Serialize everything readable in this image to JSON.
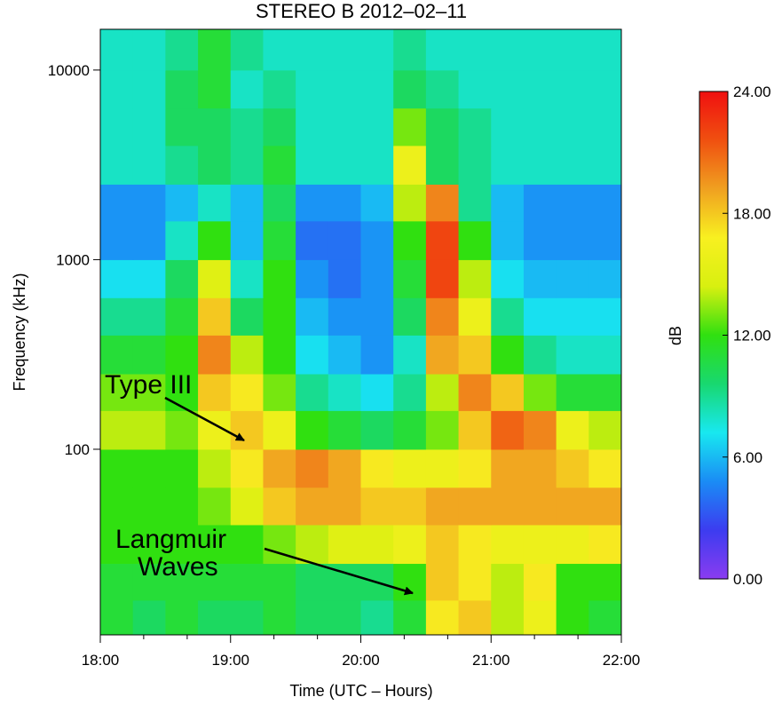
{
  "chart_data": {
    "type": "spectrogram",
    "title": "STEREO B 2012–02–11",
    "x_label": "Time (UTC – Hours)",
    "y_label": "Frequency (kHz)",
    "colorbar_label": "dB",
    "annotations": [
      "Type III",
      "Langmuir",
      "Waves"
    ],
    "xlim": [
      18,
      22
    ],
    "xticks": [
      {
        "value": 18,
        "label": "18:00"
      },
      {
        "value": 19,
        "label": "19:00"
      },
      {
        "value": 20,
        "label": "20:00"
      },
      {
        "value": 21,
        "label": "21:00"
      },
      {
        "value": 22,
        "label": "22:00"
      }
    ],
    "xminorticks": [
      18.333,
      18.667,
      19.333,
      19.667,
      20.333,
      20.667,
      21.333,
      21.667
    ],
    "ylim": [
      10.5,
      16400
    ],
    "yscale": "log",
    "yticks": [
      100,
      1000,
      10000
    ],
    "zlim": [
      0,
      24
    ],
    "zticks": [
      {
        "value": 0,
        "label": "0.00"
      },
      {
        "value": 6,
        "label": "6.00"
      },
      {
        "value": 12,
        "label": "12.00"
      },
      {
        "value": 18,
        "label": "18.00"
      },
      {
        "value": 24,
        "label": "24.00"
      }
    ],
    "colormap": [
      "#8a3cf0",
      "#3c3cf0",
      "#1a8cf5",
      "#18e8f0",
      "#18d870",
      "#30e010",
      "#d8f010",
      "#f8f020",
      "#f0a020",
      "#f05010",
      "#f01010"
    ],
    "x_bins": [
      18,
      18.25,
      18.5,
      18.75,
      19,
      19.25,
      19.5,
      19.75,
      20,
      20.25,
      20.5,
      20.75,
      21,
      21.25,
      21.5,
      21.75,
      22
    ],
    "y_bins": [
      10.5,
      16,
      25,
      40,
      63,
      100,
      160,
      250,
      400,
      630,
      1000,
      1600,
      2500,
      4000,
      6300,
      10000,
      16400
    ],
    "z": [
      [
        11,
        10,
        11,
        10,
        10,
        11,
        10,
        10,
        9,
        11,
        17,
        18,
        14,
        16,
        12,
        11
      ],
      [
        11,
        11,
        11,
        11,
        11,
        11,
        10,
        10,
        10,
        12,
        18,
        17,
        14,
        17,
        12,
        12
      ],
      [
        12,
        12,
        12,
        12,
        12,
        13,
        14,
        15,
        15,
        16,
        18,
        17,
        16,
        16,
        16,
        17
      ],
      [
        12,
        12,
        12,
        13,
        15,
        18,
        19,
        19,
        18,
        18,
        19,
        19,
        19,
        19,
        19,
        19
      ],
      [
        12,
        12,
        12,
        14,
        17,
        19,
        20,
        19,
        17,
        16,
        16,
        17,
        19,
        19,
        18,
        17
      ],
      [
        14,
        14,
        13,
        16,
        18,
        16,
        12,
        11,
        10,
        11,
        13,
        18,
        21,
        20,
        16,
        14
      ],
      [
        13,
        13,
        12,
        18,
        17,
        13,
        9,
        8,
        7,
        9,
        14,
        20,
        18,
        13,
        11,
        11
      ],
      [
        11,
        11,
        12,
        20,
        14,
        12,
        7,
        6,
        5,
        8,
        19,
        18,
        12,
        9,
        8,
        8
      ],
      [
        9,
        9,
        11,
        18,
        10,
        12,
        6,
        5,
        5,
        10,
        20,
        16,
        9,
        7,
        7,
        7
      ],
      [
        7,
        7,
        10,
        15,
        8,
        12,
        5,
        4,
        5,
        11,
        22,
        14,
        7,
        6,
        6,
        6
      ],
      [
        5,
        5,
        8,
        12,
        6,
        11,
        4,
        4,
        5,
        12,
        22,
        12,
        6,
        5,
        5,
        5
      ],
      [
        5,
        5,
        6,
        8,
        6,
        10,
        5,
        5,
        6,
        14,
        20,
        9,
        6,
        5,
        5,
        5
      ],
      [
        8,
        8,
        9,
        10,
        9,
        11,
        8,
        8,
        8,
        16,
        10,
        9,
        8,
        8,
        8,
        8
      ],
      [
        8,
        8,
        10,
        10,
        9,
        10,
        8,
        8,
        8,
        13,
        10,
        9,
        8,
        8,
        8,
        8
      ],
      [
        8,
        8,
        10,
        11,
        8,
        9,
        8,
        8,
        8,
        10,
        9,
        8,
        8,
        8,
        8,
        8
      ],
      [
        8,
        8,
        9,
        11,
        9,
        8,
        8,
        8,
        8,
        9,
        8,
        8,
        8,
        8,
        8,
        8
      ]
    ]
  }
}
